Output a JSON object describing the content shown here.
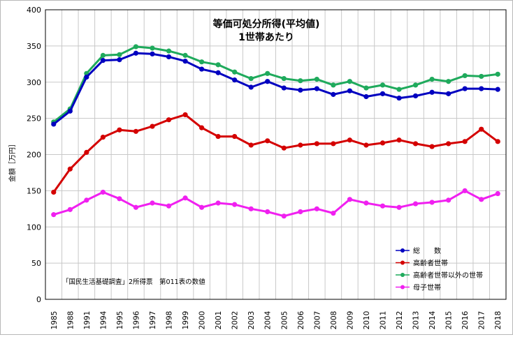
{
  "chart_data": {
    "type": "line",
    "title": "等価可処分所得(平均値)",
    "subtitle": "1世帯あたり",
    "ylabel": "金額［万円］",
    "ylim": [
      0,
      400
    ],
    "yticks": [
      0,
      50,
      100,
      150,
      200,
      250,
      300,
      350,
      400
    ],
    "grid": true,
    "legend_position": "bottom-right",
    "note": "「国民生活基礎調査」2所得票　第011表の数値",
    "categories": [
      "1985",
      "1988",
      "1991",
      "1994",
      "1995",
      "1996",
      "1997",
      "1998",
      "1999",
      "2000",
      "2001",
      "2002",
      "2003",
      "2004",
      "2005",
      "2006",
      "2007",
      "2008",
      "2009",
      "2010",
      "2011",
      "2012",
      "2013",
      "2014",
      "2015",
      "2016",
      "2017",
      "2018"
    ],
    "series": [
      {
        "name": "総　　数",
        "color": "#0000c0",
        "values": [
          242,
          260,
          307,
          330,
          331,
          340,
          339,
          335,
          329,
          318,
          313,
          303,
          293,
          301,
          292,
          289,
          291,
          283,
          288,
          280,
          284,
          278,
          281,
          286,
          284,
          291,
          291,
          290
        ]
      },
      {
        "name": "高齢者世帯",
        "color": "#d40000",
        "values": [
          148,
          180,
          203,
          224,
          234,
          232,
          239,
          248,
          255,
          237,
          225,
          225,
          213,
          219,
          209,
          213,
          215,
          215,
          220,
          213,
          216,
          220,
          215,
          211,
          215,
          218,
          235,
          218
        ]
      },
      {
        "name": "高齢者世帯以外の世帯",
        "color": "#1faa5c",
        "values": [
          245,
          263,
          312,
          337,
          338,
          349,
          347,
          343,
          337,
          328,
          324,
          314,
          305,
          312,
          305,
          302,
          304,
          296,
          301,
          292,
          296,
          290,
          296,
          304,
          301,
          309,
          308,
          311
        ]
      },
      {
        "name": "母子世帯",
        "color": "#f020f0",
        "values": [
          117,
          124,
          137,
          148,
          139,
          127,
          133,
          129,
          140,
          127,
          133,
          131,
          125,
          121,
          115,
          121,
          125,
          119,
          138,
          133,
          129,
          127,
          132,
          134,
          137,
          150,
          138,
          146
        ]
      }
    ]
  }
}
